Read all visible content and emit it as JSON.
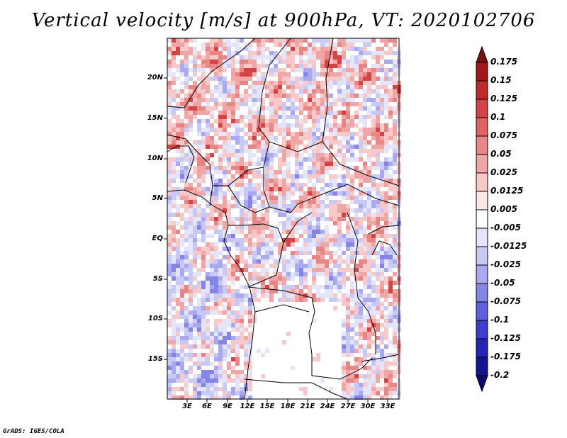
{
  "title": "Vertical velocity [m/s] at 900hPa, VT: 2020102706",
  "footer": "GrADS: IGES/COLA",
  "map": {
    "lat_labels": [
      "20N",
      "15N",
      "10N",
      "5N",
      "EQ",
      "5S",
      "10S",
      "15S"
    ],
    "lon_labels": [
      "3E",
      "6E",
      "9E",
      "12E",
      "15E",
      "18E",
      "21E",
      "24E",
      "27E",
      "30E",
      "33E"
    ]
  },
  "colorbar": {
    "levels": [
      "0.175",
      "0.15",
      "0.125",
      "0.1",
      "0.075",
      "0.05",
      "0.025",
      "0.0125",
      "0.005",
      "-0.005",
      "-0.0125",
      "-0.025",
      "-0.05",
      "-0.075",
      "-0.1",
      "-0.125",
      "-0.175",
      "-0.2"
    ],
    "colors": [
      "#7a0f0f",
      "#a51818",
      "#c12a2a",
      "#d44444",
      "#e06363",
      "#e88585",
      "#f1a6a6",
      "#f8c9c9",
      "#fce7e7",
      "#ffffff",
      "#e4e4fb",
      "#c9c9f6",
      "#a9a9f0",
      "#8585e8",
      "#6060dd",
      "#3c3cd0",
      "#2222b8",
      "#14148f",
      "#0a0a6e"
    ]
  }
}
